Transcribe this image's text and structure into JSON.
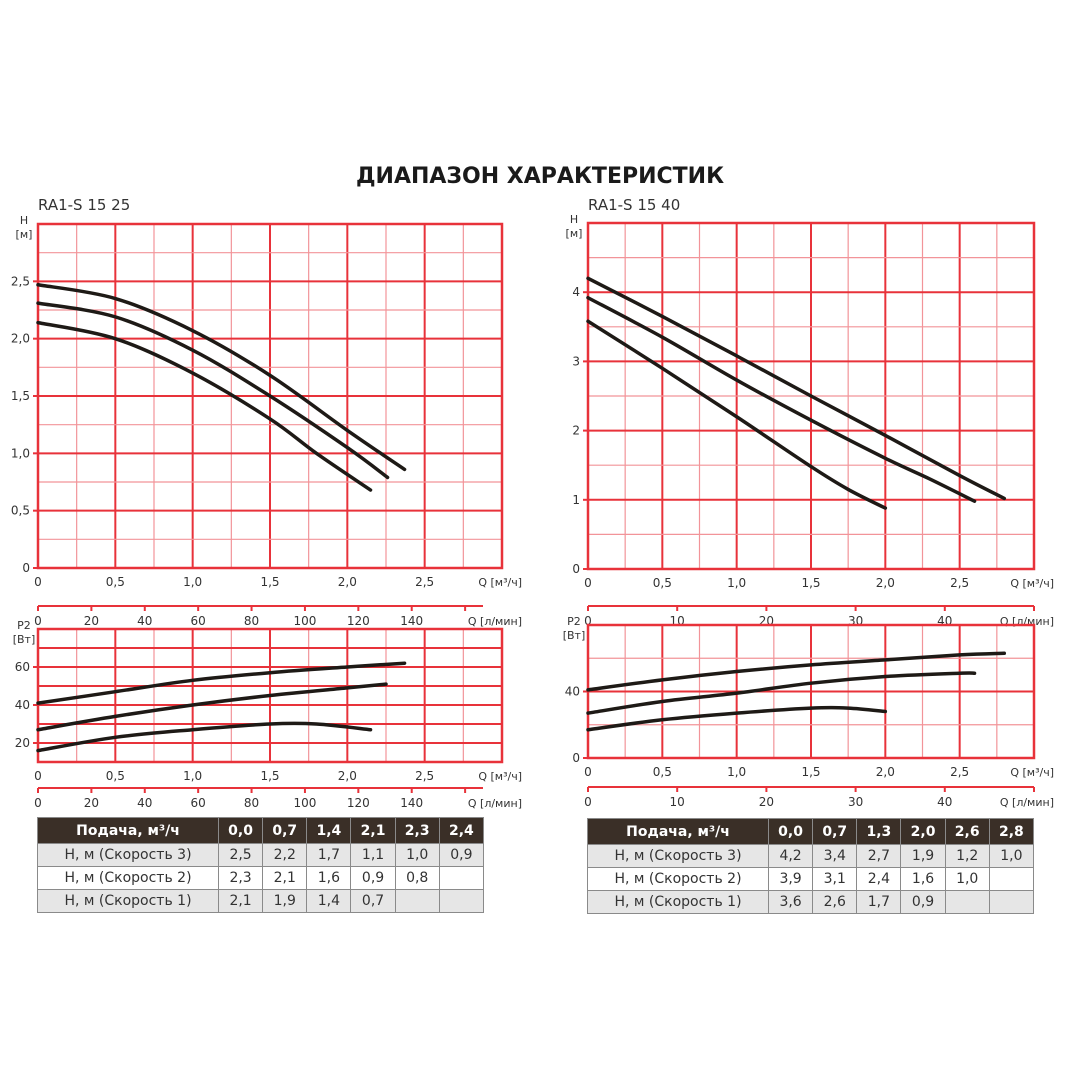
{
  "title": "ДИАПАЗОН ХАРАКТЕРИСТИК",
  "colors": {
    "grid_major": "#e8323a",
    "grid_minor": "#f29499",
    "curve": "#1e1a16",
    "table_header": "#3a2f27",
    "row_gray": "#e6e6e6"
  },
  "chart_data": [
    {
      "id": "h_1525",
      "type": "line",
      "title": "RA1-S 15 25",
      "ylabel": "H",
      "yunit": "[м]",
      "xlabel": "Q [м³/ч]",
      "x2label": "Q [л/мин]",
      "xlim": [
        0,
        3
      ],
      "ylim": [
        0,
        3
      ],
      "xticks": [
        "0",
        "0,5",
        "1,0",
        "1,5",
        "2,0",
        "2,5"
      ],
      "yticks": [
        "0",
        "0,5",
        "1,0",
        "1,5",
        "2,0",
        "2,5"
      ],
      "x2ticks": [
        "0",
        "20",
        "40",
        "60",
        "80",
        "100",
        "120",
        "140"
      ],
      "grid": true,
      "series": [
        {
          "x": [
            0,
            0.5,
            1.0,
            1.5,
            2.0,
            2.37
          ],
          "y": [
            2.47,
            2.35,
            2.07,
            1.68,
            1.2,
            0.86
          ]
        },
        {
          "x": [
            0,
            0.5,
            1.0,
            1.5,
            2.0,
            2.26
          ],
          "y": [
            2.31,
            2.19,
            1.9,
            1.5,
            1.05,
            0.79
          ]
        },
        {
          "x": [
            0,
            0.5,
            1.0,
            1.5,
            1.8,
            2.15
          ],
          "y": [
            2.14,
            2.0,
            1.7,
            1.3,
            1.0,
            0.68
          ]
        }
      ]
    },
    {
      "id": "p_1525",
      "type": "line",
      "ylabel": "P2",
      "yunit": "[Вт]",
      "xlabel": "Q [м³/ч]",
      "x2label": "Q [л/мин]",
      "xlim": [
        0,
        3
      ],
      "ylim": [
        10,
        80
      ],
      "xticks": [
        "0",
        "0,5",
        "1,0",
        "1,5",
        "2,0",
        "2,5"
      ],
      "yticks": [
        "20",
        "40",
        "60"
      ],
      "x2ticks": [
        "0",
        "20",
        "40",
        "60",
        "80",
        "100",
        "120",
        "140"
      ],
      "grid": true,
      "series": [
        {
          "x": [
            0,
            0.5,
            1.0,
            1.5,
            2.0,
            2.37
          ],
          "y": [
            41,
            47,
            53,
            57,
            60,
            62
          ]
        },
        {
          "x": [
            0,
            0.5,
            1.0,
            1.5,
            2.0,
            2.25
          ],
          "y": [
            27,
            34,
            40,
            45,
            49,
            51
          ]
        },
        {
          "x": [
            0,
            0.5,
            1.0,
            1.5,
            1.8,
            2.15
          ],
          "y": [
            16,
            23,
            27,
            30,
            30,
            27
          ]
        }
      ]
    },
    {
      "id": "h_1540",
      "type": "line",
      "title": "RA1-S 15 40",
      "ylabel": "H",
      "yunit": "[м]",
      "xlabel": "Q [м³/ч]",
      "x2label": "Q [л/мин]",
      "xlim": [
        0,
        3
      ],
      "ylim": [
        0,
        5
      ],
      "xticks": [
        "0",
        "0,5",
        "1,0",
        "1,5",
        "2,0",
        "2,5"
      ],
      "yticks": [
        "0",
        "1",
        "2",
        "3",
        "4"
      ],
      "x2ticks": [
        "0",
        "10",
        "20",
        "30",
        "40"
      ],
      "grid": true,
      "series": [
        {
          "x": [
            0,
            0.5,
            1.0,
            1.5,
            2.0,
            2.5,
            2.8
          ],
          "y": [
            4.2,
            3.65,
            3.08,
            2.5,
            1.93,
            1.35,
            1.02
          ]
        },
        {
          "x": [
            0,
            0.5,
            1.0,
            1.5,
            2.0,
            2.3,
            2.6
          ],
          "y": [
            3.92,
            3.35,
            2.73,
            2.15,
            1.6,
            1.3,
            0.98
          ]
        },
        {
          "x": [
            0,
            0.5,
            1.0,
            1.5,
            1.75,
            2.0
          ],
          "y": [
            3.58,
            2.9,
            2.2,
            1.48,
            1.15,
            0.88
          ]
        }
      ]
    },
    {
      "id": "p_1540",
      "type": "line",
      "ylabel": "P2",
      "yunit": "[Вт]",
      "xlabel": "Q [м³/ч]",
      "x2label": "Q [л/мин]",
      "xlim": [
        0,
        3
      ],
      "ylim": [
        0,
        80
      ],
      "xticks": [
        "0",
        "0,5",
        "1,0",
        "1,5",
        "2,0",
        "2,5"
      ],
      "yticks": [
        "0",
        "40"
      ],
      "x2ticks": [
        "0",
        "10",
        "20",
        "30",
        "40"
      ],
      "grid": true,
      "series": [
        {
          "x": [
            0,
            0.5,
            1.0,
            1.5,
            2.0,
            2.5,
            2.8
          ],
          "y": [
            41,
            47,
            52,
            56,
            59,
            62,
            63
          ]
        },
        {
          "x": [
            0,
            0.5,
            1.0,
            1.5,
            2.0,
            2.5,
            2.6
          ],
          "y": [
            27,
            34,
            39,
            45,
            49,
            51,
            51
          ]
        },
        {
          "x": [
            0,
            0.5,
            1.0,
            1.5,
            1.75,
            2.0
          ],
          "y": [
            17,
            23,
            27,
            30,
            30,
            28
          ]
        }
      ]
    }
  ],
  "tables": [
    {
      "header": [
        "Подача, м³/ч",
        "0,0",
        "0,7",
        "1,4",
        "2,1",
        "2,3",
        "2,4"
      ],
      "rows": [
        [
          "H, м (Скорость 3)",
          "2,5",
          "2,2",
          "1,7",
          "1,1",
          "1,0",
          "0,9"
        ],
        [
          "H, м (Скорость 2)",
          "2,3",
          "2,1",
          "1,6",
          "0,9",
          "0,8",
          ""
        ],
        [
          "H, м (Скорость 1)",
          "2,1",
          "1,9",
          "1,4",
          "0,7",
          "",
          ""
        ]
      ]
    },
    {
      "header": [
        "Подача, м³/ч",
        "0,0",
        "0,7",
        "1,3",
        "2,0",
        "2,6",
        "2,8"
      ],
      "rows": [
        [
          "H, м (Скорость 3)",
          "4,2",
          "3,4",
          "2,7",
          "1,9",
          "1,2",
          "1,0"
        ],
        [
          "H, м (Скорость 2)",
          "3,9",
          "3,1",
          "2,4",
          "1,6",
          "1,0",
          ""
        ],
        [
          "H, м (Скорость 1)",
          "3,6",
          "2,6",
          "1,7",
          "0,9",
          "",
          ""
        ]
      ]
    }
  ]
}
